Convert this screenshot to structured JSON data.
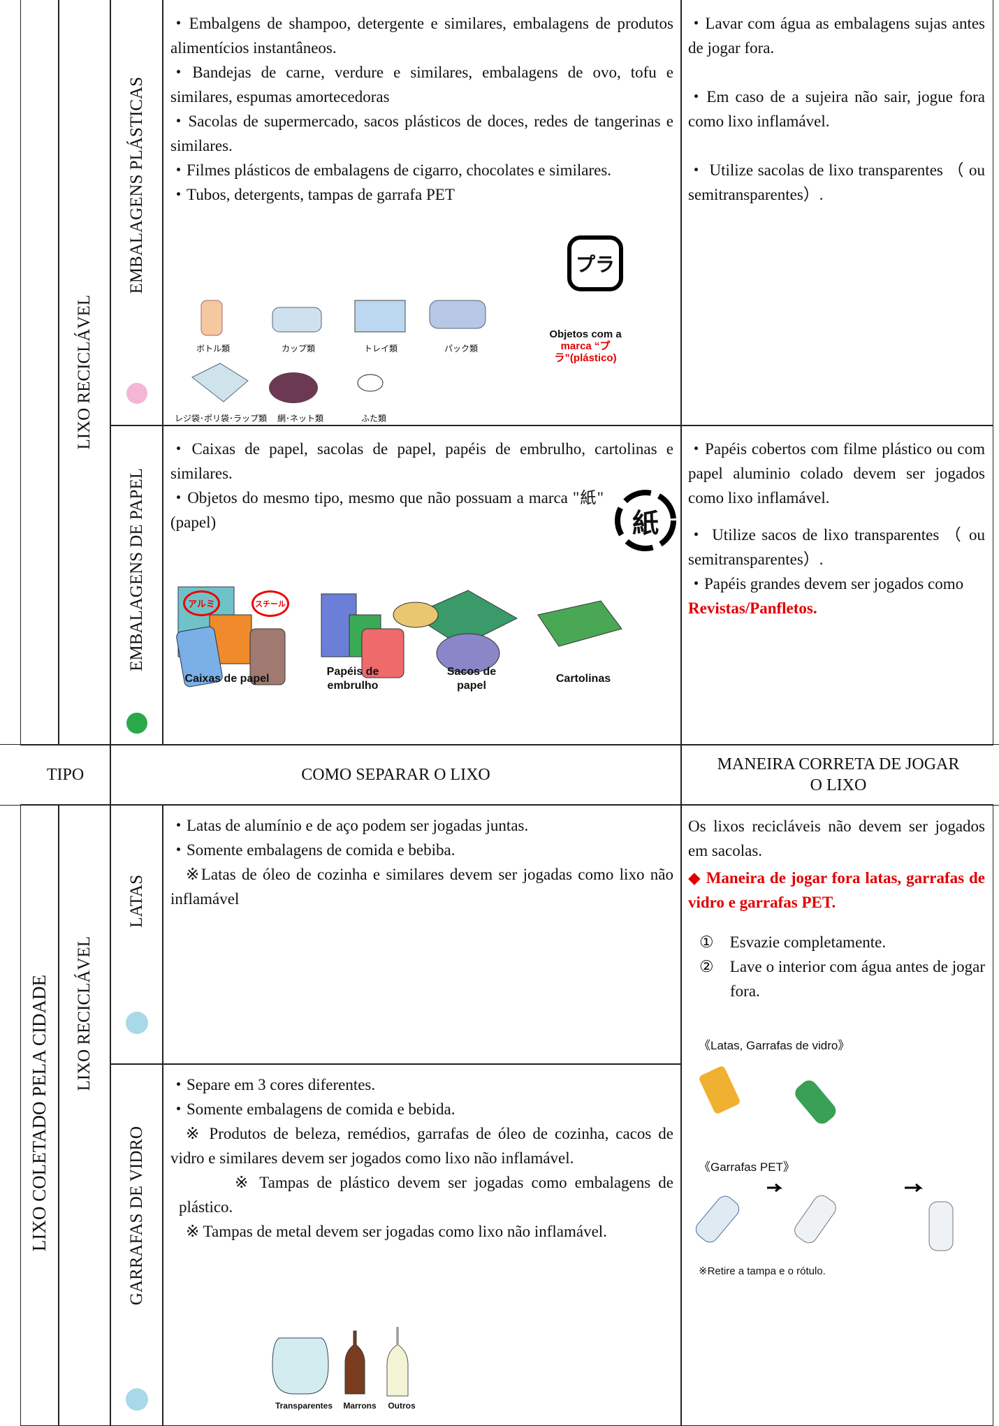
{
  "top": {
    "group_label": "LIXO RECICLÁVEL",
    "plastic": {
      "category": "EMBALAGENS PLÁSTICAS",
      "items": [
        "・Embalgens de shampoo, detergente e similares, embalagens de produtos alimentícios instantâneos.",
        "・Bandejas de carne, verdure e similares, embalagens de ovo, tofu e similares, espumas amortecedoras",
        "・Sacolas de supermercado, sacos plásticos de doces, redes de tangerinas e similares.",
        "・Filmes plásticos de embalagens de cigarro, chocolates e similares.",
        "・Tubos, detergents, tampas de garrafa PET"
      ],
      "icon_text": "プラ",
      "mark_note": "Objetos com a",
      "mark_note_red": "marca “プラ”(plástico)",
      "image_labels": [
        "ボトル類",
        "カップ類",
        "トレイ類",
        "パック類",
        "レジ袋･ポリ袋･ラップ類",
        "網･ネット類",
        "ふた類"
      ],
      "instructions": [
        "・Lavar com água as embalagens sujas antes de jogar fora.",
        "・Em caso de a sujeira não sair, jogue fora como lixo inflamável.",
        "・ Utilize sacolas de lixo transparentes （ ou semitransparentes）."
      ]
    },
    "paper": {
      "category": "EMBALAGENS DE PAPEL",
      "items": [
        "・Caixas de papel, sacolas de papel, papéis de embrulho, cartolinas e similares.",
        "・Objetos do mesmo tipo, mesmo que não possuam a marca \"紙\"(papel)"
      ],
      "icon_text": "紙",
      "image_labels": [
        "Caixas de papel",
        "Papéis de embrulho",
        "Sacos de papel",
        "Cartolinas"
      ],
      "instructions": [
        "・Papéis cobertos com filme plástico ou com papel aluminio colado devem ser jogados como lixo inflamável.",
        "・ Utilize sacos de lixo transparentes （ ou semitransparentes）.",
        "・Papéis grandes devem ser jogados como"
      ],
      "instructions_red": "Revistas/Panfletos."
    }
  },
  "header": {
    "type": "TIPO",
    "how": "COMO SEPARAR O LIXO",
    "correct": "MANEIRA CORRETA DE JOGAR O LIXO"
  },
  "bottom": {
    "collector": "LIXO COLETADO PELA CIDADE",
    "group_label": "LIXO RECICLÁVEL",
    "cans": {
      "category": "LATAS",
      "items": [
        "・Latas de alumínio e de aço podem ser jogadas juntas.",
        "・Somente embalagens de comida e bebiba.",
        "※Latas de óleo de cozinha e similares devem ser jogadas como lixo não inflamável"
      ],
      "icon_texts": [
        "アルミ",
        "スチール"
      ]
    },
    "glass": {
      "category": "GARRAFAS DE VIDRO",
      "items": [
        "・Separe em 3 cores diferentes.",
        "・Somente embalagens de comida e bebida.",
        "※ Produtos de beleza, remédios, garrafas de óleo de cozinha, cacos de vidro e similares devem ser jogados como lixo não inflamável.",
        "※ Tampas de plástico devem ser jogadas como embalagens de plástico.",
        "※ Tampas de metal devem ser jogadas como lixo não inflamável."
      ],
      "image_labels": [
        "Transparentes",
        "Marrons",
        "Outros"
      ]
    },
    "instructions": {
      "intro": "Os lixos recicláveis não devem ser jogados em sacolas.",
      "heading": "◆ Maneira de jogar fora latas, garrafas de vidro e garrafas PET.",
      "steps": [
        "①　Esvazie completamente.",
        "②　Lave o interior com água antes de jogar fora."
      ],
      "label_cans": "《Latas, Garrafas de vidro》",
      "label_pet": "《Garrafas PET》",
      "note": "※Retire a tampa e o rótulo."
    }
  }
}
